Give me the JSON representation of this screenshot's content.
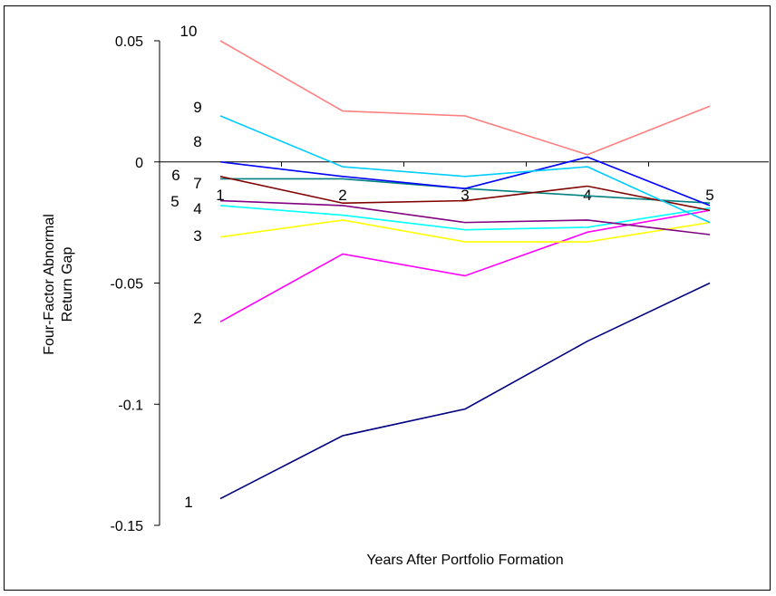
{
  "chart_data": {
    "type": "line",
    "title": "",
    "xlabel": "Years After Portfolio Formation",
    "ylabel_lines": [
      "Four-Factor Abnormal",
      "Return Gap"
    ],
    "x": [
      1,
      2,
      3,
      4,
      5
    ],
    "x_tick_labels": [
      "1",
      "2",
      "3",
      "4",
      "5"
    ],
    "ylim": [
      -0.15,
      0.05
    ],
    "y_ticks": [
      0.05,
      0,
      -0.05,
      -0.1,
      -0.15
    ],
    "y_tick_labels": [
      "0.05",
      "0",
      "-0.05",
      "-0.1",
      "-0.15"
    ],
    "grid": false,
    "legend": "none (series labeled at left of lines)",
    "series": [
      {
        "label": "1",
        "color": "#000080",
        "values": [
          -0.139,
          -0.113,
          -0.102,
          -0.074,
          -0.05
        ]
      },
      {
        "label": "2",
        "color": "#ff00ff",
        "values": [
          -0.066,
          -0.038,
          -0.047,
          -0.029,
          -0.02
        ]
      },
      {
        "label": "3",
        "color": "#ffff00",
        "values": [
          -0.031,
          -0.024,
          -0.033,
          -0.033,
          -0.025
        ]
      },
      {
        "label": "4",
        "color": "#00ffff",
        "values": [
          -0.018,
          -0.022,
          -0.028,
          -0.027,
          -0.019
        ]
      },
      {
        "label": "5",
        "color": "#800080",
        "values": [
          -0.016,
          -0.018,
          -0.025,
          -0.024,
          -0.03
        ]
      },
      {
        "label": "6",
        "color": "#008080",
        "values": [
          -0.007,
          -0.007,
          -0.011,
          -0.014,
          -0.017
        ]
      },
      {
        "label": "7",
        "color": "#800000",
        "values": [
          -0.006,
          -0.017,
          -0.016,
          -0.01,
          -0.02
        ]
      },
      {
        "label": "8",
        "color": "#0000ff",
        "values": [
          0.0,
          -0.006,
          -0.011,
          0.002,
          -0.018
        ]
      },
      {
        "label": "9",
        "color": "#00ccff",
        "values": [
          0.019,
          -0.002,
          -0.006,
          -0.002,
          -0.025
        ]
      },
      {
        "label": "10",
        "color": "#ff8080",
        "values": [
          0.05,
          0.021,
          0.019,
          0.003,
          0.023
        ]
      }
    ]
  }
}
